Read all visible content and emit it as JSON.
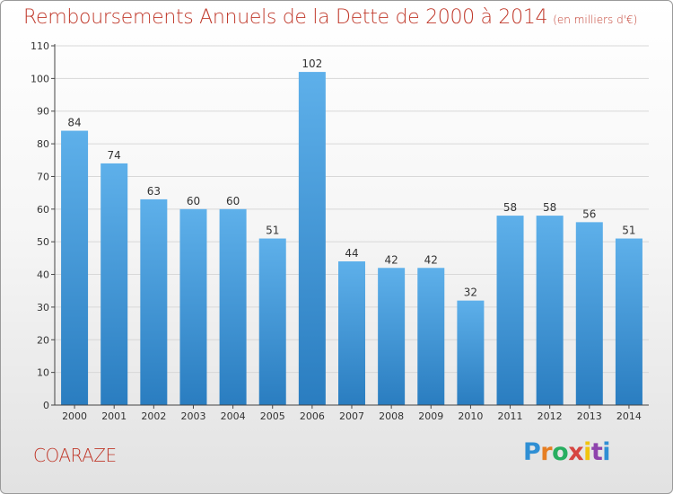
{
  "title": "Remboursements Annuels de la Dette de 2000 à 2014",
  "subtitle": "(en milliers d'€)",
  "city": "COARAZE",
  "logo": {
    "letters": [
      "P",
      "r",
      "o",
      "x",
      "i",
      "t",
      "i"
    ]
  },
  "colors": {
    "title": "#c0392b",
    "bar_top": "#5eb0ea",
    "bar_bottom": "#2a7dc0",
    "grid": "#d8d8d8"
  },
  "chart_data": {
    "type": "bar",
    "title": "Remboursements Annuels de la Dette de 2000 à 2014",
    "subtitle": "(en milliers d'€)",
    "xlabel": "",
    "ylabel": "",
    "ylim": [
      0,
      110
    ],
    "ytick_step": 10,
    "grid": true,
    "categories": [
      "2000",
      "2001",
      "2002",
      "2003",
      "2004",
      "2005",
      "2006",
      "2007",
      "2008",
      "2009",
      "2010",
      "2011",
      "2012",
      "2013",
      "2014"
    ],
    "values": [
      84,
      74,
      63,
      60,
      60,
      51,
      102,
      44,
      42,
      42,
      32,
      58,
      58,
      56,
      51
    ]
  }
}
